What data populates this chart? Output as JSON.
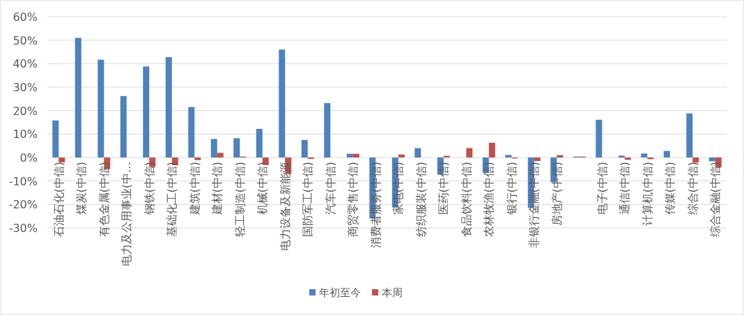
{
  "chart_data": {
    "type": "bar",
    "categories": [
      "石油石化(中信)",
      "煤炭(中信)",
      "有色金属(中信)",
      "电力及公用事业(中…",
      "钢铁(中信)",
      "基础化工(中信)",
      "建筑(中信)",
      "建材(中信)",
      "轻工制造(中信)",
      "机械(中信)",
      "电力设备及新能源",
      "国防军工(中信)",
      "汽车(中信)",
      "商贸零售(中信)",
      "消费者服务(中信)",
      "家电(中信)",
      "纺织服装(中信)",
      "医药(中信)",
      "食品饮料(中信)",
      "农林牧渔(中信)",
      "银行(中信)",
      "非银行金融(中信)",
      "房地产(中信)",
      null,
      "电子(中信)",
      "通信(中信)",
      "计算机(中信)",
      "传媒(中信)",
      "综合(中信)",
      "综合金融(中信)"
    ],
    "series": [
      {
        "name": "年初至今",
        "color": "#4f81bd",
        "values": [
          15.8,
          51,
          41.7,
          26.2,
          38.8,
          42.8,
          21.5,
          7.9,
          8.2,
          12.2,
          46,
          7.5,
          23.2,
          1.6,
          -26,
          -21.3,
          4,
          -7.3,
          0,
          -6.6,
          1.1,
          -21.5,
          -10.5,
          0.4,
          16.1,
          0.8,
          1.7,
          2.8,
          18.8,
          -1.6
        ]
      },
      {
        "name": "本周",
        "color": "#c0504d",
        "values": [
          -2.1,
          0,
          -5,
          0,
          -4,
          -3.3,
          -1.1,
          2,
          0.4,
          -3.2,
          -7,
          -0.6,
          0,
          1.6,
          0,
          1.3,
          0,
          0.7,
          4,
          6.3,
          -0.4,
          -1.5,
          1,
          0.4,
          0,
          -1,
          -0.7,
          0,
          -2.2,
          -4.2
        ]
      }
    ],
    "ylim": [
      -30,
      60
    ],
    "yticks": [
      {
        "value": -30,
        "label": "-30%"
      },
      {
        "value": -20,
        "label": "-20%"
      },
      {
        "value": -10,
        "label": "-10%"
      },
      {
        "value": 0,
        "label": "0%"
      },
      {
        "value": 10,
        "label": "10%"
      },
      {
        "value": 20,
        "label": "20%"
      },
      {
        "value": 30,
        "label": "30%"
      },
      {
        "value": 40,
        "label": "40%"
      },
      {
        "value": 50,
        "label": "50%"
      },
      {
        "value": 60,
        "label": "60%"
      }
    ],
    "grid": "y",
    "legend": "bottom"
  }
}
